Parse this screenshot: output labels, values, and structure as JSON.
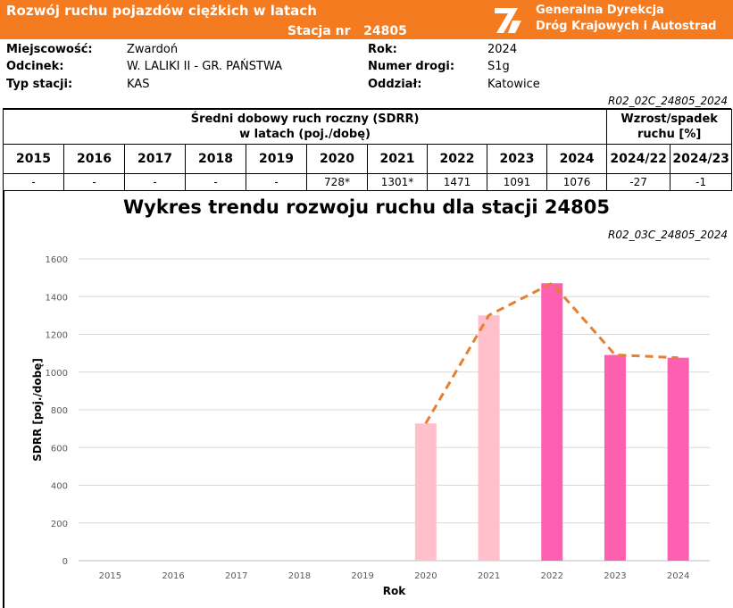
{
  "header": {
    "title": "Rozwój ruchu pojazdów ciężkich w latach",
    "station_label": "Stacja nr",
    "station_number": "24805",
    "org_line1": "Generalna Dyrekcja",
    "org_line2": "Dróg Krajowych i Autostrad"
  },
  "info": {
    "town_label": "Miejscowość:",
    "town_value": "Zwardoń",
    "section_label": "Odcinek:",
    "section_value": "W. LALIKI II - GR. PAŃSTWA",
    "type_label": "Typ stacji:",
    "type_value": "KAS",
    "year_label": "Rok:",
    "year_value": "2024",
    "road_label": "Numer drogi:",
    "road_value": "S1g",
    "branch_label": "Oddział:",
    "branch_value": "Katowice"
  },
  "table_code": "R02_02C_24805_2024",
  "table": {
    "sdrr_line1": "Średni dobowy ruch roczny (SDRR)",
    "sdrr_line2": "w latach (poj./dobę)",
    "change_line1": "Wzrost/spadek",
    "change_line2": "ruchu [%]",
    "columns": [
      "2015",
      "2016",
      "2017",
      "2018",
      "2019",
      "2020",
      "2021",
      "2022",
      "2023",
      "2024",
      "2024/22",
      "2024/23"
    ],
    "values": [
      "-",
      "-",
      "-",
      "-",
      "-",
      "728*",
      "1301*",
      "1471",
      "1091",
      "1076",
      "-27",
      "-1"
    ]
  },
  "chart_code": "R02_03C_24805_2024",
  "chart_data": {
    "type": "bar",
    "title": "Wykres trendu rozwoju ruchu dla stacji 24805",
    "xlabel": "Rok",
    "ylabel": "SDRR [poj./dobę]",
    "ylim": [
      0,
      1600
    ],
    "yticks": [
      0,
      200,
      400,
      600,
      800,
      1000,
      1200,
      1400,
      1600
    ],
    "categories": [
      "2015",
      "2016",
      "2017",
      "2018",
      "2019",
      "2020",
      "2021",
      "2022",
      "2023",
      "2024"
    ],
    "values": [
      null,
      null,
      null,
      null,
      null,
      728,
      1301,
      1471,
      1091,
      1076
    ],
    "bar_colors": [
      "#ffc0cb",
      "#ffc0cb",
      "#ffc0cb",
      "#ffc0cb",
      "#ffc0cb",
      "#ffc0cb",
      "#ffc0cb",
      "#ff5fb0",
      "#ff5fb0",
      "#ff5fb0"
    ],
    "trend_color": "#e87e2f",
    "grid": true
  }
}
